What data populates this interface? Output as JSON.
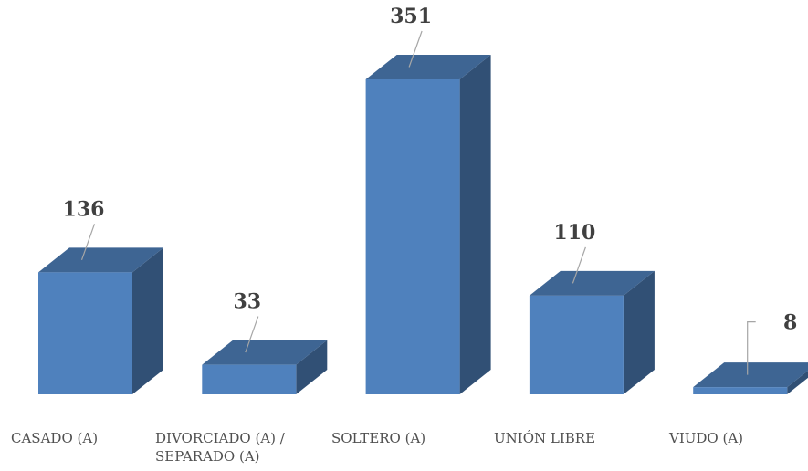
{
  "chart_data": {
    "type": "bar3d",
    "categories": [
      "CASADO (A)",
      "DIVORCIADO (A) / SEPARADO (A)",
      "SOLTERO (A)",
      "UNIÓN LIBRE",
      "VIUDO (A)"
    ],
    "values": [
      136,
      33,
      351,
      110,
      8
    ],
    "color": "#4f81bd"
  }
}
